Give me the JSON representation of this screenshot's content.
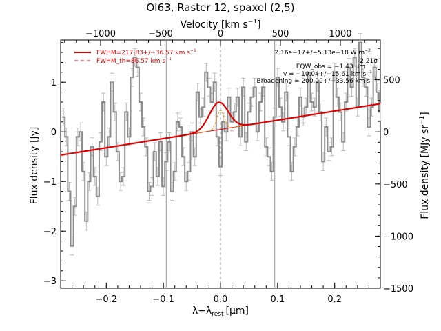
{
  "chart_data": {
    "type": "line",
    "title": "OI63, Raster 12, spaxel (2,5)",
    "xlabel": "λ−λ",
    "xlabel_sub": "rest",
    "xlabel_unit": "[μm]",
    "ylabel": "Flux density [Jy]",
    "ylabel_right": "Flux density [MJy sr",
    "ylabel_right_sup": "−1",
    "ylabel_right_end": "]",
    "xlabel_top": "Velocity [km s",
    "xlabel_top_sup": "−1",
    "xlabel_top_end": "]",
    "xlim": [
      -0.28,
      0.28
    ],
    "ylim": [
      -3.15,
      1.85
    ],
    "xticks": [
      {
        "v": -0.2,
        "label": "−0.2"
      },
      {
        "v": -0.1,
        "label": "−0.1"
      },
      {
        "v": 0.0,
        "label": "0.0"
      },
      {
        "v": 0.1,
        "label": "0.1"
      },
      {
        "v": 0.2,
        "label": "0.2"
      }
    ],
    "yticks": [
      {
        "v": -3,
        "label": "−3"
      },
      {
        "v": -2,
        "label": "−2"
      },
      {
        "v": -1,
        "label": "−1"
      },
      {
        "v": 0,
        "label": "0"
      },
      {
        "v": 1,
        "label": "1"
      }
    ],
    "top_ticks": [
      {
        "x": -0.21,
        "label": "−1000"
      },
      {
        "x": -0.105,
        "label": "−500"
      },
      {
        "x": 0.0,
        "label": "0"
      },
      {
        "x": 0.105,
        "label": "500"
      },
      {
        "x": 0.21,
        "label": "1000"
      }
    ],
    "right_ticks": [
      {
        "y": -3.15,
        "label": "−1500"
      },
      {
        "y": -2.1,
        "label": "−1000"
      },
      {
        "y": -1.05,
        "label": "−500"
      },
      {
        "y": 0.0,
        "label": "0"
      },
      {
        "y": 1.05,
        "label": "500"
      }
    ],
    "vlines": [
      -0.095,
      0.095
    ],
    "vline_center": 0.0,
    "legend": [
      {
        "text": "FWHM=217.83+/−36.57 km s",
        "sup": "−1",
        "style": "solid"
      },
      {
        "text": "FWHM_th=86.57 km s",
        "sup": "−1",
        "style": "dashed"
      }
    ],
    "annotations": [
      {
        "text": "2.16e−17+/−5.13e−18 W m",
        "sup": "−2"
      },
      {
        "text": "2.21σ"
      },
      {
        "text": "EQW_obs = −1.43 μm"
      },
      {
        "text": "v = −10.04+/−15.61 km s",
        "sup": "−1"
      },
      {
        "text": "Broadening = 200.00+/−33.56 km s",
        "sup": "−1"
      }
    ],
    "continuum": {
      "slope": 1.85,
      "intercept": 0.05
    },
    "gaussian": {
      "amp": 0.55,
      "center": -0.003,
      "sigma": 0.0165
    },
    "gaussian_th": {
      "amp": 0.38,
      "center": 0.0,
      "sigma": 0.0066
    },
    "data_x0": -0.275,
    "data_dx": 0.005,
    "data_values": [
      0.3,
      -0.1,
      -1.2,
      -2.3,
      -1.5,
      -0.1,
      0.0,
      -0.8,
      -1.8,
      -1.0,
      -0.3,
      -0.9,
      -1.3,
      -0.2,
      0.6,
      -0.5,
      -0.1,
      1.0,
      0.4,
      -0.4,
      -1.0,
      -0.9,
      0.4,
      -0.1,
      1.1,
      1.5,
      1.3,
      0.6,
      0.1,
      -0.3,
      -1.2,
      -1.1,
      -0.4,
      -0.9,
      -0.2,
      -1.1,
      -0.6,
      -0.2,
      -1.2,
      -0.8,
      0.2,
      0.1,
      -0.5,
      -1.0,
      -0.8,
      0.0,
      -0.5,
      0.8,
      0.3,
      0.5,
      1.2,
      0.9,
      0.6,
      1.0,
      -0.1,
      -0.7,
      0.2,
      0.0,
      0.7,
      0.2,
      0.4,
      0.7,
      -0.1,
      0.9,
      -0.2,
      0.4,
      0.7,
      0.9,
      0.0,
      0.6,
      0.9,
      -0.3,
      -0.5,
      -0.8,
      0.3,
      1.1,
      0.5,
      0.2,
      0.8,
      -0.1,
      -0.8,
      -0.3,
      0.1,
      0.7,
      0.3,
      0.5,
      1.2,
      0.6,
      0.5,
      1.0,
      0.4,
      -0.6,
      0.1,
      -0.4,
      -0.3,
      1.2,
      0.7,
      0.4,
      -0.2,
      0.6,
      1.3,
      0.9,
      1.5,
      0.5,
      1.8,
      1.1,
      0.9,
      0.1,
      0.5,
      1.3,
      0.8,
      0.4
    ],
    "error": 0.18
  }
}
